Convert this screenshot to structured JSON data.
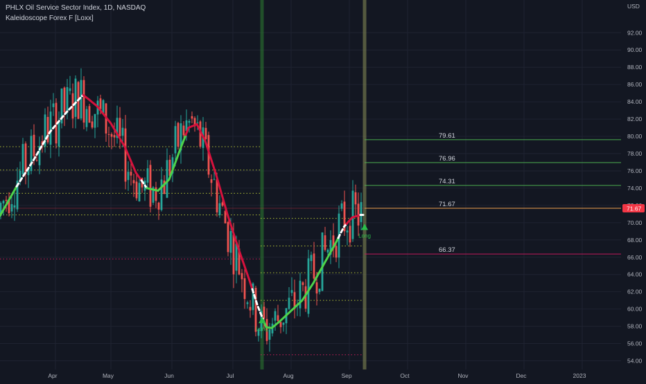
{
  "chart_data": {
    "type": "candlestick",
    "title": "PHLX Oil Service Sector Index, 1D, NASDAQ",
    "indicator": "Kaleidoscope Forex F [Loxx]",
    "currency": "USD",
    "ylim": [
      53,
      93
    ],
    "y_ticks": [
      54.0,
      56.0,
      58.0,
      60.0,
      62.0,
      64.0,
      66.0,
      68.0,
      70.0,
      72.0,
      74.0,
      76.0,
      78.0,
      80.0,
      82.0,
      84.0,
      86.0,
      88.0,
      90.0,
      92.0
    ],
    "x_ticks": [
      "Apr",
      "May",
      "Jun",
      "Jul",
      "Aug",
      "Sep",
      "Oct",
      "Nov",
      "Dec",
      "2023"
    ],
    "x_tick_index": [
      20,
      40,
      62,
      84,
      105,
      126,
      147,
      168,
      189,
      210
    ],
    "last_price": 71.67,
    "target_levels": [
      {
        "value": 79.61,
        "label": "79.61",
        "color": "#4caf50"
      },
      {
        "value": 76.96,
        "label": "76.96",
        "color": "#4caf50"
      },
      {
        "value": 74.31,
        "label": "74.31",
        "color": "#4caf50"
      },
      {
        "value": 71.67,
        "label": "71.67",
        "color": "#f0a14f"
      },
      {
        "value": 66.37,
        "label": "66.37",
        "color": "#c2185b"
      }
    ],
    "dotted_levels": [
      {
        "value": 78.8,
        "from": 0,
        "to": 94,
        "color": "#cddc39"
      },
      {
        "value": 76.1,
        "from": 0,
        "to": 94,
        "color": "#cddc39"
      },
      {
        "value": 73.4,
        "from": 0,
        "to": 94,
        "color": "#cddc39"
      },
      {
        "value": 70.9,
        "from": 0,
        "to": 94,
        "color": "#cddc39"
      },
      {
        "value": 65.8,
        "from": 0,
        "to": 94,
        "color": "#e91e63"
      },
      {
        "value": 70.5,
        "from": 94,
        "to": 131,
        "color": "#cddc39"
      },
      {
        "value": 67.3,
        "from": 94,
        "to": 131,
        "color": "#cddc39"
      },
      {
        "value": 64.2,
        "from": 94,
        "to": 131,
        "color": "#cddc39"
      },
      {
        "value": 61.0,
        "from": 94,
        "to": 131,
        "color": "#cddc39"
      },
      {
        "value": 54.7,
        "from": 94,
        "to": 131,
        "color": "#e91e63"
      }
    ],
    "vertical_markers": [
      {
        "index": 94.5,
        "color": "#2e7d32"
      },
      {
        "index": 131.5,
        "color": "#8a8f57"
      }
    ],
    "signals": [
      {
        "index": 94.5,
        "value": 58.6,
        "label": "Long"
      },
      {
        "index": 131.5,
        "value": 69.4,
        "label": "Long"
      }
    ],
    "moving_average": [
      {
        "index": 0,
        "value": 70.8
      },
      {
        "index": 6,
        "value": 74.2
      },
      {
        "index": 12,
        "value": 77.2
      },
      {
        "index": 18,
        "value": 80.5
      },
      {
        "index": 24,
        "value": 82.8
      },
      {
        "index": 30,
        "value": 84.8
      },
      {
        "index": 35,
        "value": 83.5
      },
      {
        "index": 40,
        "value": 81.5
      },
      {
        "index": 45,
        "value": 78.8
      },
      {
        "index": 49,
        "value": 75.8
      },
      {
        "index": 53,
        "value": 74.0
      },
      {
        "index": 57,
        "value": 73.7
      },
      {
        "index": 61,
        "value": 75.0
      },
      {
        "index": 65,
        "value": 78.5
      },
      {
        "index": 68,
        "value": 81.0
      },
      {
        "index": 71,
        "value": 81.4
      },
      {
        "index": 74,
        "value": 79.5
      },
      {
        "index": 78,
        "value": 75.5
      },
      {
        "index": 82,
        "value": 71.0
      },
      {
        "index": 86,
        "value": 67.0
      },
      {
        "index": 90,
        "value": 63.3
      },
      {
        "index": 93,
        "value": 60.3
      },
      {
        "index": 96,
        "value": 57.9
      },
      {
        "index": 98,
        "value": 57.8
      },
      {
        "index": 101,
        "value": 58.6
      },
      {
        "index": 105,
        "value": 59.8
      },
      {
        "index": 109,
        "value": 61.0
      },
      {
        "index": 113,
        "value": 63.0
      },
      {
        "index": 117,
        "value": 65.3
      },
      {
        "index": 121,
        "value": 67.6
      },
      {
        "index": 124,
        "value": 69.5
      },
      {
        "index": 127,
        "value": 70.6
      },
      {
        "index": 130,
        "value": 70.9
      }
    ],
    "ma_segments": [
      {
        "from": 0,
        "to": 6,
        "style": "up"
      },
      {
        "from": 6,
        "to": 30,
        "style": "flat"
      },
      {
        "from": 30,
        "to": 51,
        "style": "down"
      },
      {
        "from": 51,
        "to": 53,
        "style": "flat"
      },
      {
        "from": 53,
        "to": 67,
        "style": "up"
      },
      {
        "from": 67,
        "to": 91,
        "style": "down"
      },
      {
        "from": 91,
        "to": 95,
        "style": "flat"
      },
      {
        "from": 95,
        "to": 122,
        "style": "up"
      },
      {
        "from": 122,
        "to": 125,
        "style": "flat"
      },
      {
        "from": 125,
        "to": 130,
        "style": "down"
      },
      {
        "from": 130,
        "to": 131,
        "style": "flat"
      }
    ],
    "colors": {
      "background": "#131722",
      "grid": "#1f2331",
      "candle_up": "#26a69a",
      "candle_down": "#ef5350",
      "ma_up": "#4ed34a",
      "ma_down": "#d6123d",
      "ma_flat": "#ffffff",
      "signal": "#2bbd4a",
      "axis_text": "#b2b5be",
      "last_price_bg": "#f23645"
    }
  }
}
